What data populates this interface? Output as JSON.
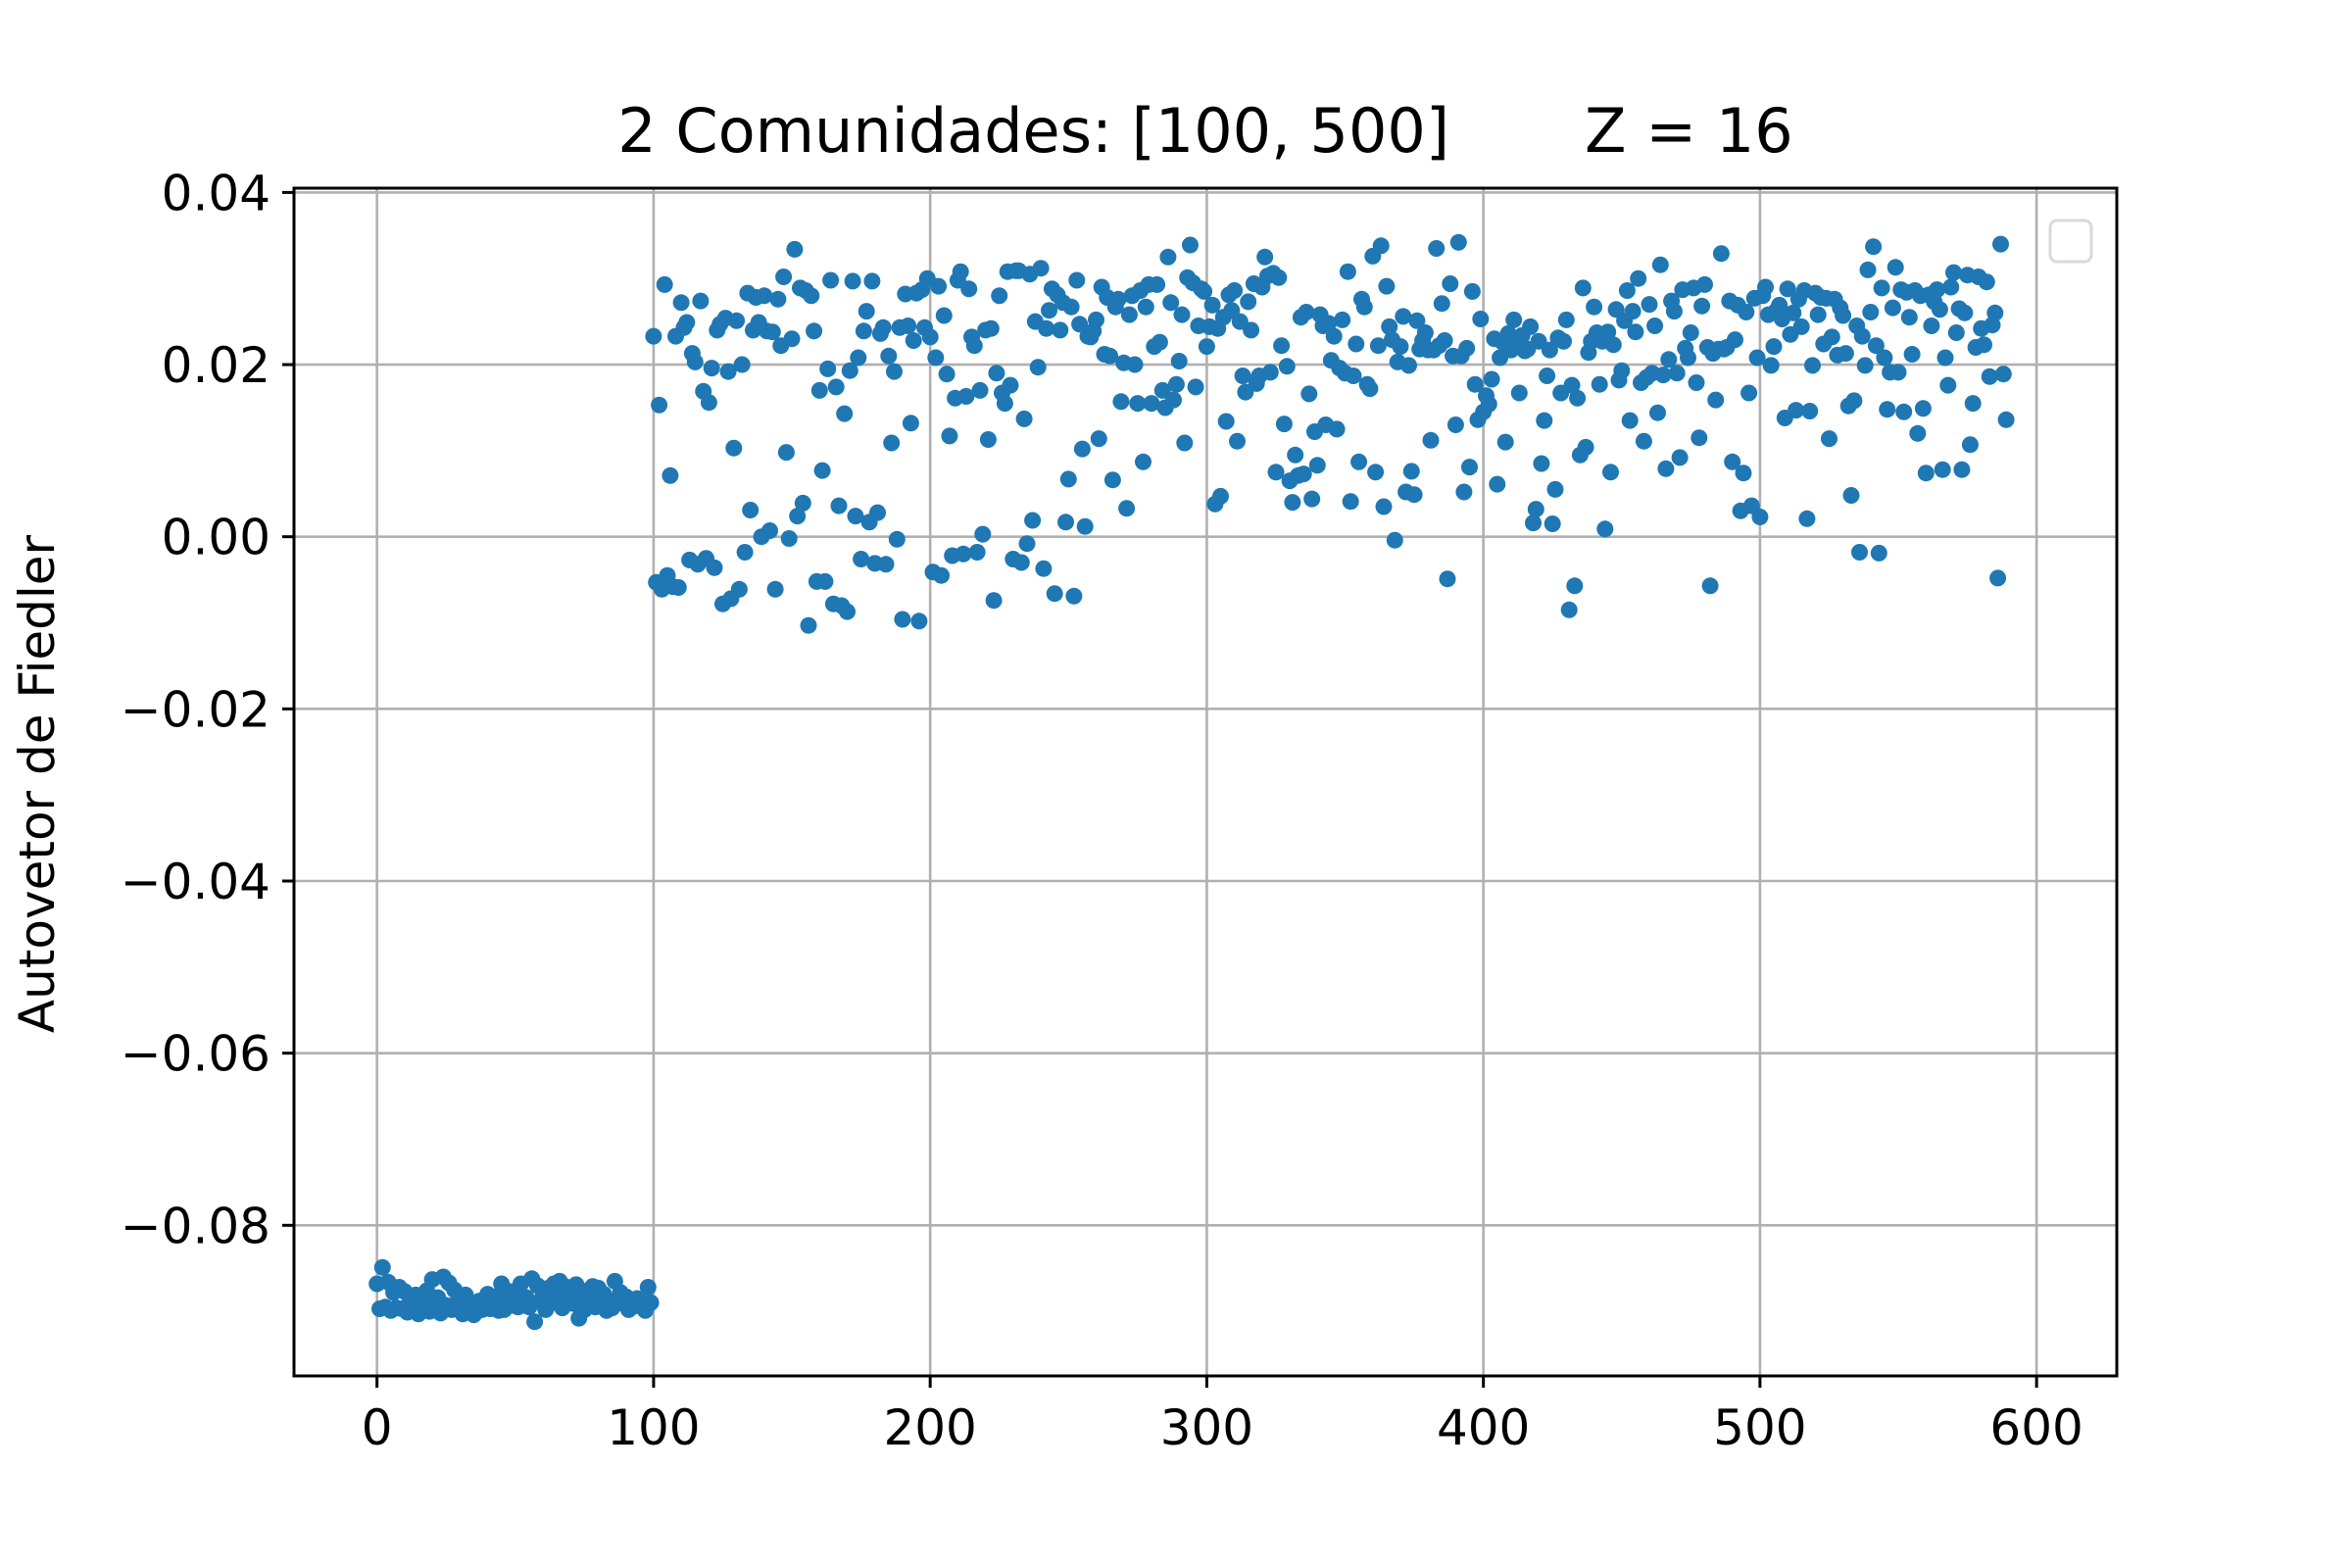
{
  "chart_data": {
    "type": "scatter",
    "title": "2 Comunidades: [100, 500]       Z = 16",
    "xlabel": "",
    "ylabel": "Autovetor de Fiedler",
    "xlim": [
      -30,
      629
    ],
    "ylim": [
      -0.0975,
      0.0405
    ],
    "xticks": [
      0,
      100,
      200,
      300,
      400,
      500,
      600
    ],
    "xtick_labels": [
      "0",
      "100",
      "200",
      "300",
      "400",
      "500",
      "600"
    ],
    "yticks": [
      0.04,
      0.02,
      0.0,
      -0.02,
      -0.04,
      -0.06,
      -0.08
    ],
    "ytick_labels": [
      "0.04",
      "0.02",
      "0.00",
      "−0.02",
      "−0.04",
      "−0.06",
      "−0.08"
    ],
    "grid": true,
    "legend": "top-right (empty)",
    "color": "#1f77b4",
    "series": [
      {
        "values": [
          -0.0868,
          -0.0897,
          -0.0849,
          -0.0895,
          -0.0866,
          -0.0899,
          -0.0878,
          -0.0896,
          -0.0872,
          -0.0897,
          -0.0877,
          -0.0901,
          -0.0887,
          -0.0894,
          -0.0881,
          -0.0903,
          -0.0884,
          -0.0891,
          -0.0876,
          -0.09,
          -0.0863,
          -0.0896,
          -0.0884,
          -0.0902,
          -0.086,
          -0.0893,
          -0.0867,
          -0.0898,
          -0.0875,
          -0.089,
          -0.0883,
          -0.0903,
          -0.0881,
          -0.0893,
          -0.089,
          -0.0904,
          -0.0893,
          -0.0888,
          -0.0898,
          -0.0886,
          -0.088,
          -0.0897,
          -0.0893,
          -0.0883,
          -0.0899,
          -0.0868,
          -0.0898,
          -0.0888,
          -0.0877,
          -0.0893,
          -0.0877,
          -0.0895,
          -0.0868,
          -0.0889,
          -0.0884,
          -0.0895,
          -0.0862,
          -0.0912,
          -0.087,
          -0.0888,
          -0.0877,
          -0.0898,
          -0.0873,
          -0.089,
          -0.0868,
          -0.0883,
          -0.0865,
          -0.0896,
          -0.0871,
          -0.0881,
          -0.0874,
          -0.0891,
          -0.0869,
          -0.0908,
          -0.0883,
          -0.0898,
          -0.0876,
          -0.0887,
          -0.0871,
          -0.0895,
          -0.0873,
          -0.0885,
          -0.088,
          -0.0899,
          -0.0889,
          -0.0896,
          -0.0865,
          -0.0886,
          -0.0878,
          -0.0891,
          -0.0883,
          -0.0898,
          -0.0887,
          -0.0894,
          -0.0885,
          -0.0893,
          -0.089,
          -0.0899,
          -0.0872,
          -0.089,
          0.0233,
          -0.0053,
          0.0153,
          -0.0061,
          0.0293,
          -0.0045,
          0.0071,
          -0.0058,
          0.0233,
          -0.0059,
          0.0272,
          0.0243,
          0.0249,
          -0.0027,
          0.0213,
          0.0203,
          -0.0032,
          0.0274,
          0.0169,
          -0.0025,
          0.0156,
          0.0196,
          -0.0036,
          0.024,
          0.0247,
          -0.0078,
          0.0254,
          0.0192,
          -0.0072,
          0.0103,
          0.0251,
          -0.0061,
          0.02,
          -0.0018,
          0.0283,
          0.0031,
          0.024,
          0.0278,
          0.0249,
          0.0,
          0.028,
          0.0239,
          0.0007,
          0.0238,
          -0.0061,
          0.0276,
          0.0222,
          0.0302,
          0.0098,
          -0.0002,
          0.023,
          0.0334,
          0.0024,
          0.0289,
          0.0039,
          0.0286,
          -0.0103,
          0.028,
          0.0239,
          -0.0052,
          0.017,
          0.0077,
          -0.0052,
          0.0195,
          0.0298,
          -0.0078,
          0.0174,
          0.0036,
          -0.008,
          0.0143,
          -0.0087,
          0.0193,
          0.0297,
          0.0024,
          0.0208,
          -0.0026,
          0.0239,
          0.0262,
          0.0017,
          0.0297,
          -0.0031,
          0.0028,
          0.0236,
          0.0243,
          -0.0032,
          0.021,
          0.0109,
          0.0192,
          -0.0003,
          0.0243,
          -0.0096,
          0.0282,
          0.0245,
          0.0132,
          0.0228,
          0.0283,
          -0.0098,
          0.0287,
          0.0243,
          0.03,
          0.0232,
          -0.0041,
          0.0208,
          0.0291,
          -0.0045,
          0.0257,
          0.0189,
          0.0117,
          -0.0022,
          0.0161,
          0.0298,
          0.0308,
          -0.002,
          0.0163,
          0.0288,
          0.0232,
          0.0222,
          -0.0018,
          0.017,
          0.0003,
          0.024,
          0.0113,
          0.0242,
          -0.0074,
          0.019,
          0.028,
          0.0167,
          0.0155,
          0.0308,
          0.0176,
          -0.0026,
          0.0309,
          0.0309,
          -0.003,
          0.0137,
          -0.0008,
          0.0305,
          0.0019,
          0.025,
          0.0197,
          0.0312,
          -0.0037,
          0.0242,
          0.0263,
          0.0288,
          -0.0066,
          0.0281,
          0.024,
          0.0272,
          0.0017,
          0.0067,
          0.0267,
          -0.0069,
          0.0298,
          0.0247,
          0.0102,
          0.0012,
          0.0233,
          0.0232,
          0.0239,
          0.0252,
          0.0114,
          0.029,
          0.0212,
          0.0278,
          0.021,
          0.0066,
          0.0267,
          0.0276,
          0.0157,
          0.0202,
          0.0033,
          0.0258,
          0.028,
          0.02,
          0.0155,
          0.0286,
          0.0087,
          0.0267,
          0.0293,
          0.0155,
          0.0221,
          0.0293,
          0.0226,
          0.017,
          0.015,
          0.0325,
          0.0272,
          0.0159,
          0.0177,
          0.0204,
          0.0258,
          0.0109,
          0.0301,
          0.0339,
          0.0295,
          0.0174,
          0.0245,
          0.0288,
          0.0285,
          0.0221,
          0.0244,
          0.0269,
          0.0038,
          0.0242,
          0.0047,
          0.0255,
          0.0134,
          0.0281,
          0.0263,
          0.0286,
          0.0111,
          0.025,
          0.0187,
          0.0168,
          0.0273,
          0.024,
          0.0294,
          0.0178,
          0.0187,
          0.029,
          0.0325,
          0.0303,
          0.0191,
          0.0306,
          0.0075,
          0.0301,
          0.0222,
          0.0131,
          0.0198,
          0.0065,
          0.004,
          0.0095,
          0.0071,
          0.0255,
          0.0073,
          0.0261,
          0.0166,
          0.0044,
          0.0122,
          0.0083,
          0.0258,
          0.0245,
          0.013,
          0.0248,
          0.0205,
          0.0233,
          0.0125,
          0.0196,
          0.0252,
          0.019,
          0.0308,
          0.0041,
          0.0187,
          0.0224,
          0.0087,
          0.0276,
          0.0267,
          0.0177,
          0.0172,
          0.0326,
          0.0075,
          0.0222,
          0.0338,
          0.0035,
          0.0291,
          0.0244,
          0.0229,
          -0.0004,
          0.0203,
          0.0221,
          0.0256,
          0.0052,
          0.0199,
          0.0076,
          0.0049,
          0.0251,
          0.0218,
          0.0228,
          0.0237,
          0.0217,
          0.0112,
          0.0217,
          0.0335,
          0.0222,
          0.0271,
          0.0228,
          -0.0049,
          0.0294,
          0.021,
          0.013,
          0.0342,
          0.021,
          0.0052,
          0.0219,
          0.0081,
          0.0285,
          0.0177,
          0.0136,
          0.0253,
          0.0145,
          0.0164,
          0.0154,
          0.0183,
          0.023,
          0.0061,
          0.0208,
          0.0226,
          0.011,
          0.0236,
          0.0217,
          0.0252,
          0.0226,
          0.0167,
          0.0234,
          0.0216,
          0.0218,
          0.0244,
          0.0016,
          0.0032,
          0.0227,
          0.0085,
          0.0135,
          0.0187,
          0.0217,
          0.0015,
          0.0055,
          0.0231,
          0.0167,
          0.0227,
          0.0252,
          -0.0085,
          0.0176,
          -0.0057,
          0.0161,
          0.0095,
          0.0289,
          0.0104,
          0.0214,
          0.0227,
          0.0267,
          0.0237,
          0.0177,
          0.0227,
          0.0009,
          0.0238,
          0.0075,
          0.0223,
          0.0264,
          0.0182,
          0.0193,
          0.0251,
          0.0286,
          0.0135,
          0.0262,
          0.0238,
          0.03,
          0.0179,
          0.0111,
          0.0185,
          0.027,
          0.019,
          0.0245,
          0.0144,
          0.0316,
          0.0188,
          0.0079,
          0.0206,
          0.0274,
          0.0262,
          0.019,
          0.0092,
          0.0287,
          0.0219,
          0.0208,
          0.0237,
          0.0289,
          0.0179,
          0.0115,
          0.0268,
          0.0293,
          0.022,
          -0.0057,
          0.0213,
          0.0159,
          0.0218,
          0.0329,
          0.0218,
          0.022,
          0.0274,
          0.0087,
          0.0229,
          0.0269,
          0.003,
          0.0074,
          0.0261,
          0.0167,
          0.0036,
          0.0277,
          0.0208,
          0.0023,
          0.028,
          0.029,
          0.0258,
          0.0199,
          0.0221,
          0.0263,
          0.0269,
          0.0253,
          0.0138,
          0.0288,
          0.0235,
          0.026,
          0.0147,
          0.0276,
          0.0244,
          0.0286,
          0.0021,
          0.0146,
          0.0199,
          0.0283,
          0.0258,
          0.0278,
          0.0224,
          0.0277,
          0.0114,
          0.0232,
          0.0276,
          0.0211,
          0.0266,
          0.0257,
          0.0213,
          0.0152,
          0.0048,
          0.0158,
          0.0245,
          -0.0018,
          0.0233,
          0.0199,
          0.031,
          0.0261,
          0.0337,
          0.0222,
          -0.0019,
          0.0289,
          0.0208,
          0.0148,
          0.0191,
          0.0266,
          0.0313,
          0.0191,
          0.0287,
          0.0145,
          0.0284,
          0.0255,
          0.0212,
          0.0286,
          0.012,
          0.028,
          0.0149,
          0.0074,
          0.0281,
          0.0245,
          0.0273,
          0.0287,
          0.0264,
          0.0078,
          0.0208,
          0.0176,
          0.029,
          0.0307,
          0.0237,
          0.0265,
          0.0078,
          0.026,
          0.0304,
          0.0107,
          0.0155,
          0.022,
          0.0302,
          0.0242,
          0.0223,
          0.0296,
          0.0186,
          0.0246,
          0.026,
          -0.0048,
          0.034,
          0.0189,
          0.0136
        ]
      }
    ]
  }
}
